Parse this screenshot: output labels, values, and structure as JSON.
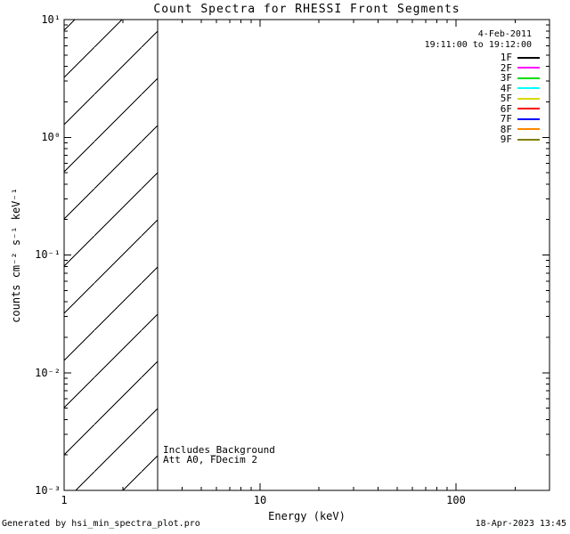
{
  "title": "Count Spectra for RHESSI Front Segments",
  "legend": {
    "date": "4-Feb-2011",
    "time_range": "19:11:00 to 19:12:00"
  },
  "annotations": {
    "line1": "Includes_Background",
    "line2": "Att A0, FDecim 2"
  },
  "footer": {
    "generated_by": "Generated by hsi_min_spectra_plot.pro",
    "timestamp": "18-Apr-2023 13:45"
  },
  "chart_data": {
    "type": "line",
    "title": "Count Spectra for RHESSI Front Segments",
    "xlabel": "Energy (keV)",
    "ylabel": "counts cm⁻² s⁻¹ keV⁻¹",
    "x_scale": "log",
    "y_scale": "log",
    "xlim": [
      1,
      300
    ],
    "ylim": [
      0.001,
      10
    ],
    "x_major_ticks": [
      1,
      10,
      100
    ],
    "x_tick_labels": [
      "1",
      "10",
      "100"
    ],
    "y_major_ticks": [
      10,
      1,
      0.1,
      0.01,
      0.001
    ],
    "y_tick_labels": [
      "10¹",
      "10⁰",
      "10⁻¹",
      "10⁻²",
      "10⁻³"
    ],
    "grid": false,
    "legend_position": "top-right",
    "frame_color": "#000000",
    "hatched_region": {
      "x_range_kev": [
        1,
        3
      ],
      "style": "diagonal-hatch",
      "line_spacing_px": 53
    },
    "series": [
      {
        "name": "1F",
        "color": "#000000",
        "values": []
      },
      {
        "name": "2F",
        "color": "#ff00ff",
        "values": []
      },
      {
        "name": "3F",
        "color": "#00dd00",
        "values": []
      },
      {
        "name": "4F",
        "color": "#00ffff",
        "values": []
      },
      {
        "name": "5F",
        "color": "#d9d900",
        "values": []
      },
      {
        "name": "6F",
        "color": "#ff0000",
        "values": []
      },
      {
        "name": "7F",
        "color": "#0000ff",
        "values": []
      },
      {
        "name": "8F",
        "color": "#ff8800",
        "values": []
      },
      {
        "name": "9F",
        "color": "#808000",
        "values": []
      }
    ]
  }
}
